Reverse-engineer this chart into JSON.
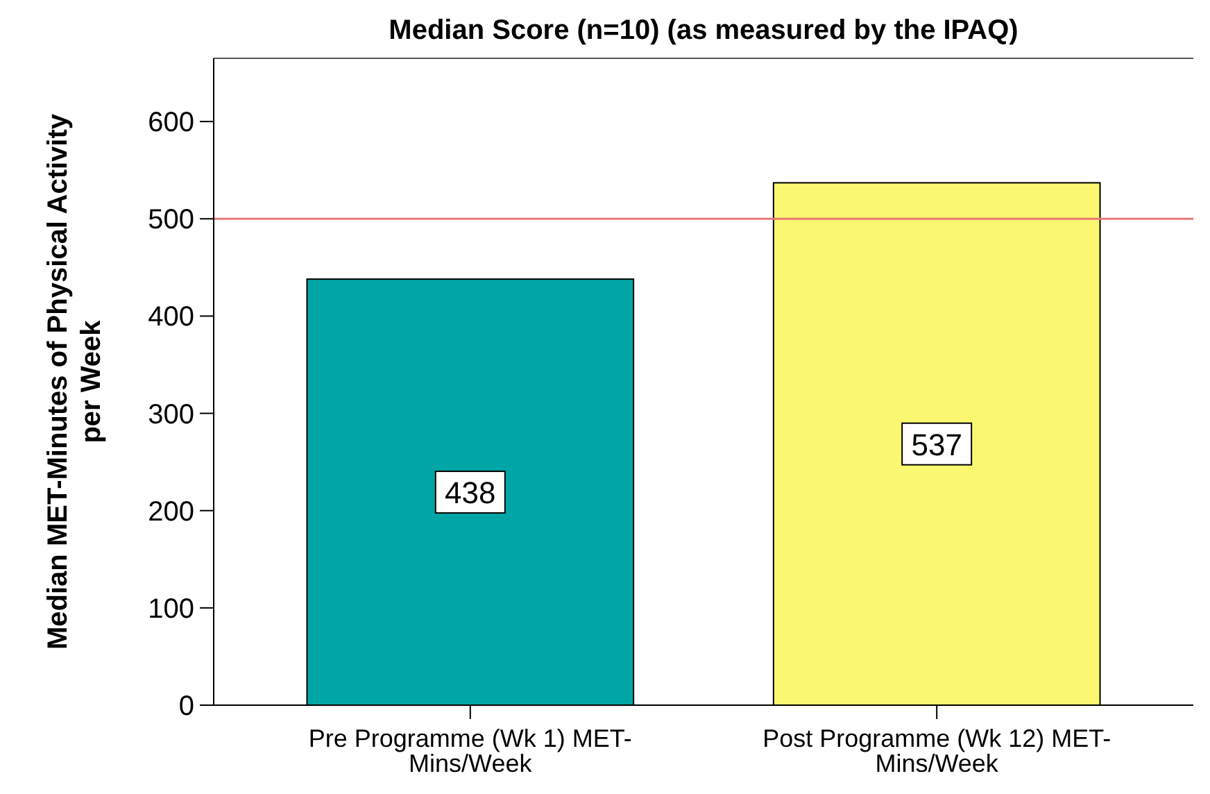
{
  "chart_data": {
    "type": "bar",
    "title": "Median Score (n=10) (as measured by the IPAQ)",
    "ylabel": "Median MET-Minutes of Physical Activity\nper Week",
    "categories": [
      "Pre Programme (Wk 1) MET-\nMins/Week",
      "Post Programme (Wk 12) MET-\nMins/Week"
    ],
    "values": [
      438,
      537
    ],
    "colors": [
      "#00a6a6",
      "#faf870"
    ],
    "ylim": [
      0,
      665
    ],
    "yticks": [
      0,
      100,
      200,
      300,
      400,
      500,
      600
    ],
    "grid": false,
    "data_labels": true,
    "ref_lines": [
      {
        "axis": "y",
        "value": 500,
        "color": "#e87878"
      }
    ]
  }
}
